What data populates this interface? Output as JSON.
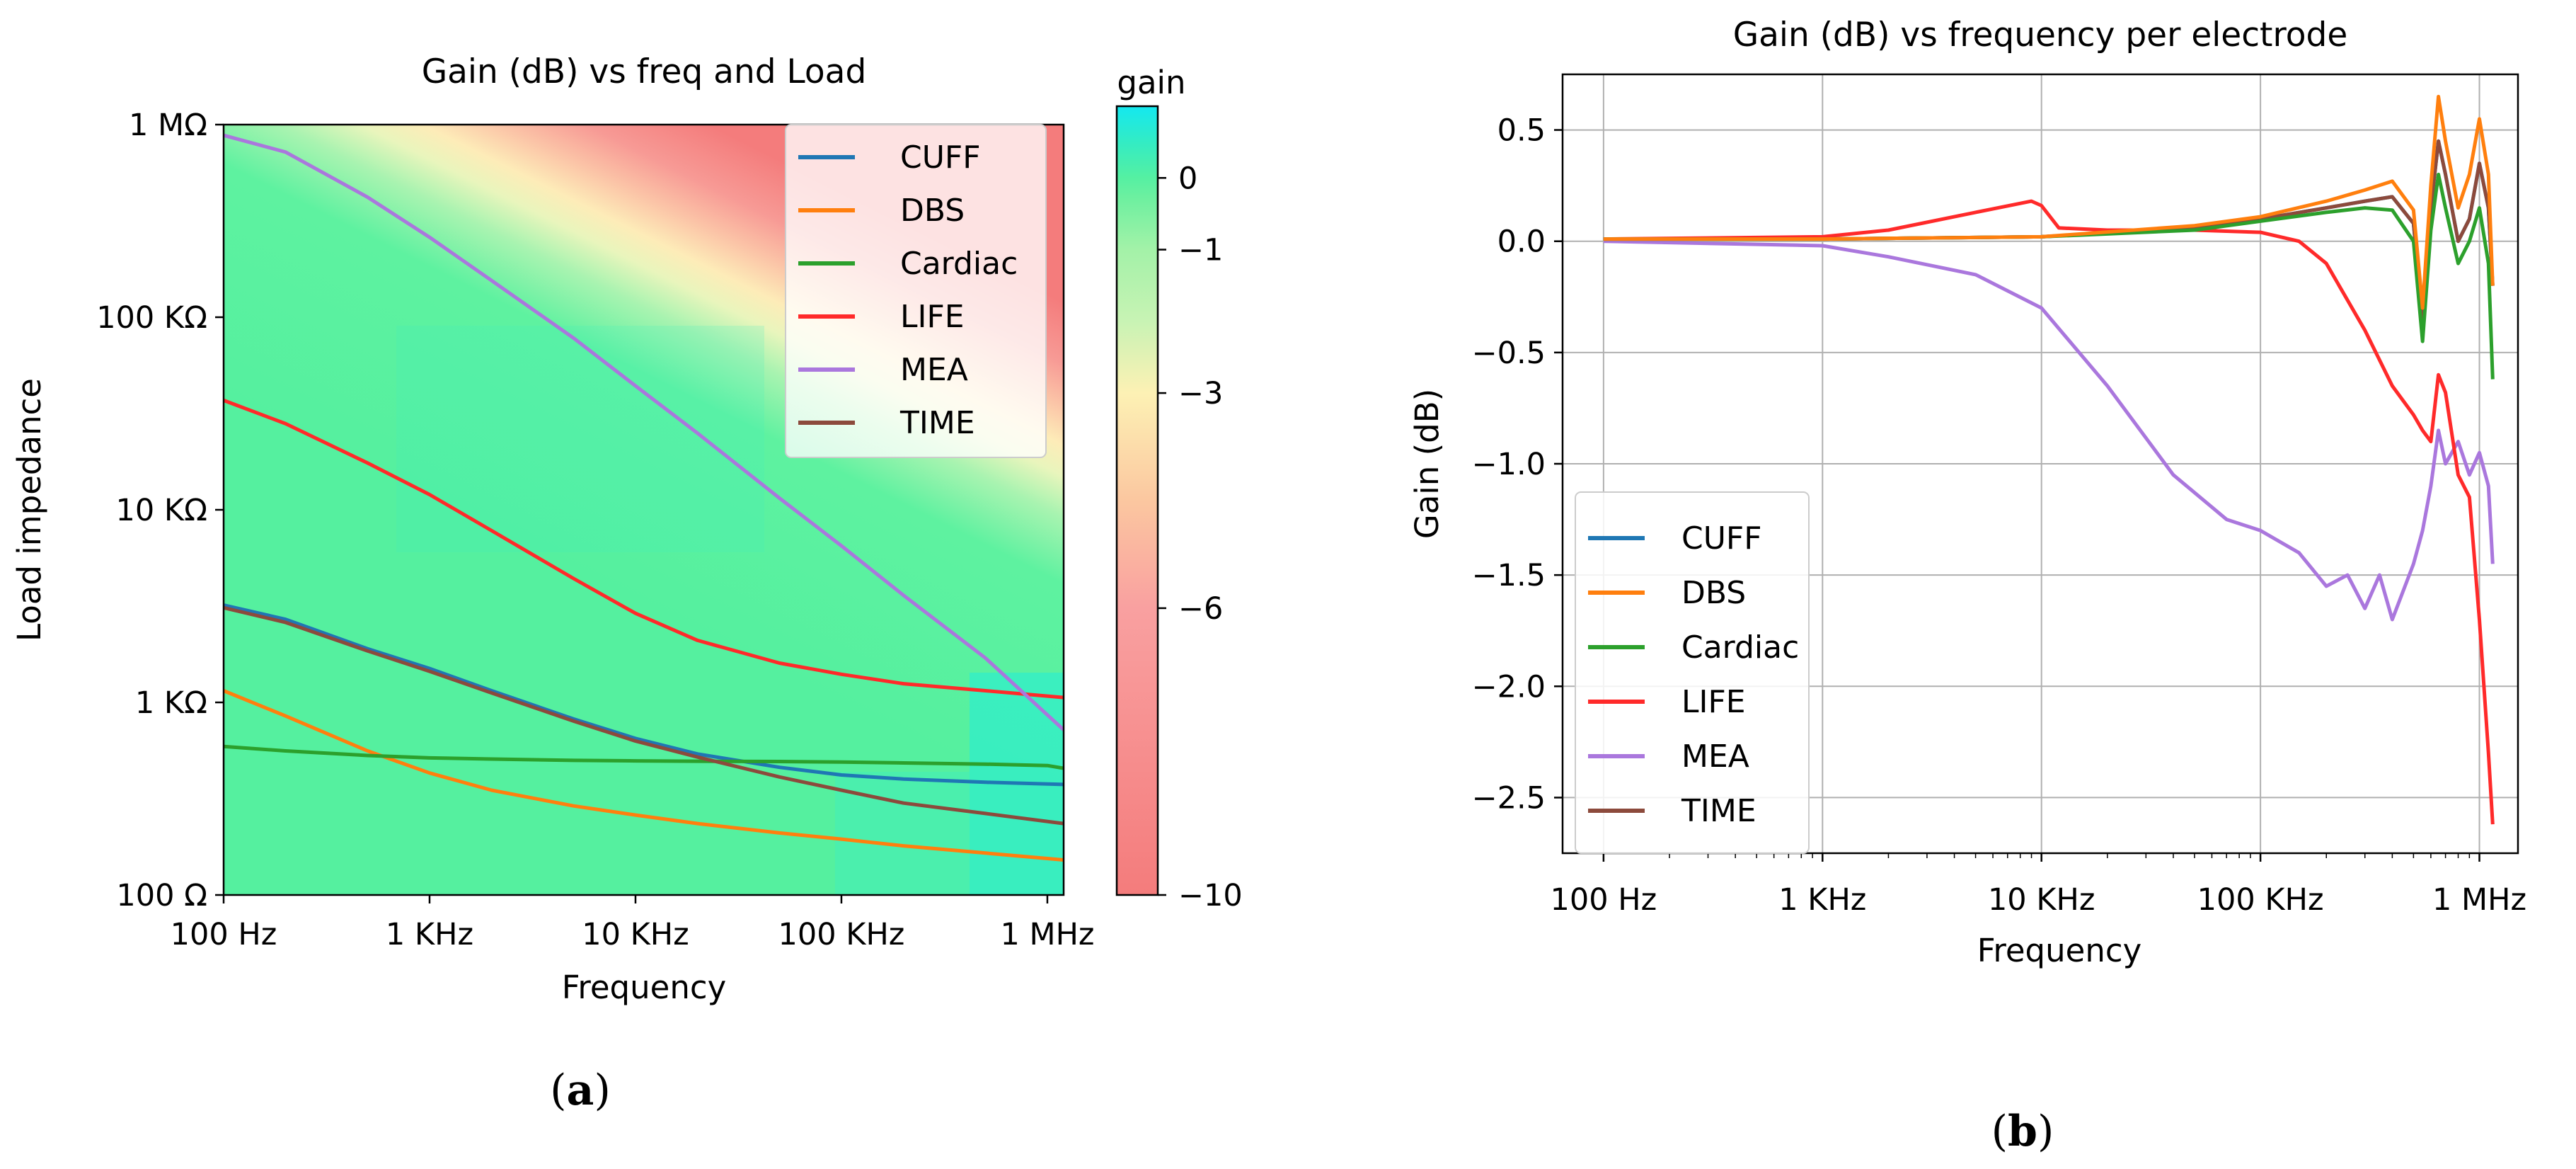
{
  "colors": {
    "CUFF": "#1f77b4",
    "DBS": "#ff7f0e",
    "Cardiac": "#2ca02c",
    "LIFE": "#ff2a2a",
    "MEA": "#aa77dd",
    "TIME": "#8c4a3c"
  },
  "labels": {
    "panel_a": "a",
    "panel_b": "b"
  },
  "chart_data": [
    {
      "type": "heatmap",
      "title": "Gain (dB) vs freq and Load",
      "xlabel": "Frequency",
      "ylabel": "Load impedance",
      "xscale": "log",
      "yscale": "log",
      "xlim": [
        100,
        1200000
      ],
      "ylim": [
        100,
        1000000
      ],
      "x_ticks": [
        {
          "v": 100,
          "label": "100 Hz"
        },
        {
          "v": 1000,
          "label": "1 KHz"
        },
        {
          "v": 10000,
          "label": "10 KHz"
        },
        {
          "v": 100000,
          "label": "100 KHz"
        },
        {
          "v": 1000000,
          "label": "1 MHz"
        }
      ],
      "y_ticks": [
        {
          "v": 100,
          "label": "100 Ω"
        },
        {
          "v": 1000,
          "label": "1 KΩ"
        },
        {
          "v": 10000,
          "label": "10 KΩ"
        },
        {
          "v": 100000,
          "label": "100 KΩ"
        },
        {
          "v": 1000000,
          "label": "1 MΩ"
        }
      ],
      "colorbar": {
        "label": "gain",
        "range": [
          -10,
          1
        ],
        "ticks": [
          {
            "v": 0,
            "label": "0"
          },
          {
            "v": -1,
            "label": "−1"
          },
          {
            "v": -3,
            "label": "−3"
          },
          {
            "v": -6,
            "label": "−6"
          },
          {
            "v": -10,
            "label": "−10"
          }
        ],
        "stops": [
          {
            "v": -10,
            "color": "#f47c7c"
          },
          {
            "v": -6,
            "color": "#f9a0a0"
          },
          {
            "v": -4.5,
            "color": "#fbc7a0"
          },
          {
            "v": -3,
            "color": "#fdf1b4"
          },
          {
            "v": -2,
            "color": "#c8f3b4"
          },
          {
            "v": -1,
            "color": "#a3f2a8"
          },
          {
            "v": -0.3,
            "color": "#6ff0a0"
          },
          {
            "v": 0,
            "color": "#55f0a2"
          },
          {
            "v": 0.5,
            "color": "#33ecc4"
          },
          {
            "v": 1,
            "color": "#14e8f0"
          }
        ]
      },
      "heatmap_note": "gain vs frequency and load: ~0 dB below a diagonal boundary, dropping to -10 dB above it (high frequency, high load)",
      "legend": {
        "placement": "top-right"
      },
      "series": [
        {
          "name": "CUFF",
          "x": [
            100,
            200,
            500,
            1000,
            2000,
            5000,
            10000,
            20000,
            50000,
            100000,
            200000,
            500000,
            1200000
          ],
          "y": [
            3200,
            2700,
            1900,
            1500,
            1150,
            820,
            650,
            540,
            460,
            420,
            400,
            385,
            375
          ]
        },
        {
          "name": "DBS",
          "x": [
            100,
            200,
            500,
            1000,
            2000,
            5000,
            10000,
            20000,
            50000,
            100000,
            200000,
            500000,
            1200000
          ],
          "y": [
            1150,
            850,
            560,
            430,
            350,
            290,
            260,
            235,
            210,
            195,
            180,
            165,
            152
          ]
        },
        {
          "name": "Cardiac",
          "x": [
            100,
            200,
            500,
            1000,
            2000,
            5000,
            10000,
            20000,
            50000,
            100000,
            200000,
            500000,
            1000000,
            1200000
          ],
          "y": [
            590,
            560,
            530,
            515,
            508,
            500,
            497,
            495,
            493,
            490,
            485,
            478,
            470,
            455
          ]
        },
        {
          "name": "LIFE",
          "x": [
            100,
            200,
            500,
            1000,
            2000,
            5000,
            10000,
            20000,
            50000,
            100000,
            200000,
            500000,
            1200000
          ],
          "y": [
            37000,
            28000,
            17500,
            12000,
            7800,
            4400,
            2900,
            2100,
            1600,
            1400,
            1250,
            1150,
            1060
          ]
        },
        {
          "name": "MEA",
          "x": [
            100,
            200,
            500,
            1000,
            2000,
            5000,
            10000,
            20000,
            50000,
            100000,
            200000,
            500000,
            1200000
          ],
          "y": [
            880000,
            720000,
            420000,
            260000,
            155000,
            78000,
            44000,
            25000,
            11500,
            6500,
            3600,
            1700,
            720
          ]
        },
        {
          "name": "TIME",
          "x": [
            100,
            200,
            500,
            1000,
            2000,
            5000,
            10000,
            20000,
            50000,
            100000,
            200000,
            500000,
            1200000
          ],
          "y": [
            3100,
            2600,
            1850,
            1450,
            1120,
            800,
            630,
            520,
            410,
            350,
            300,
            265,
            235
          ]
        }
      ]
    },
    {
      "type": "line",
      "title": "Gain (dB) vs frequency per electrode",
      "xlabel": "Frequency",
      "ylabel": "Gain (dB)",
      "xscale": "log",
      "xlim": [
        65,
        1500000
      ],
      "ylim": [
        -2.75,
        0.75
      ],
      "grid": true,
      "x_ticks": [
        {
          "v": 100,
          "label": "100 Hz"
        },
        {
          "v": 1000,
          "label": "1 KHz"
        },
        {
          "v": 10000,
          "label": "10 KHz"
        },
        {
          "v": 100000,
          "label": "100 KHz"
        },
        {
          "v": 1000000,
          "label": "1 MHz"
        }
      ],
      "y_ticks": [
        {
          "v": 0.5,
          "label": "0.5"
        },
        {
          "v": 0.0,
          "label": "0.0"
        },
        {
          "v": -0.5,
          "label": "−0.5"
        },
        {
          "v": -1.0,
          "label": "−1.0"
        },
        {
          "v": -1.5,
          "label": "−1.5"
        },
        {
          "v": -2.0,
          "label": "−2.0"
        },
        {
          "v": -2.5,
          "label": "−2.5"
        }
      ],
      "legend": {
        "placement": "lower-left"
      },
      "series": [
        {
          "name": "CUFF",
          "x": [
            100,
            1000,
            10000,
            50000,
            100000,
            200000,
            300000,
            400000,
            500000,
            550000,
            600000,
            650000,
            700000,
            800000,
            900000,
            1000000,
            1100000,
            1150000
          ],
          "y": [
            0.01,
            0.01,
            0.02,
            0.06,
            0.1,
            0.15,
            0.18,
            0.2,
            0.08,
            -0.35,
            0.15,
            0.45,
            0.3,
            0.0,
            0.1,
            0.35,
            0.15,
            -0.2
          ]
        },
        {
          "name": "DBS",
          "x": [
            100,
            1000,
            10000,
            50000,
            100000,
            200000,
            300000,
            400000,
            500000,
            550000,
            600000,
            650000,
            700000,
            800000,
            900000,
            1000000,
            1100000,
            1150000
          ],
          "y": [
            0.01,
            0.01,
            0.02,
            0.07,
            0.11,
            0.18,
            0.23,
            0.27,
            0.14,
            -0.3,
            0.25,
            0.65,
            0.45,
            0.15,
            0.3,
            0.55,
            0.3,
            -0.2
          ]
        },
        {
          "name": "Cardiac",
          "x": [
            100,
            1000,
            10000,
            50000,
            100000,
            200000,
            300000,
            400000,
            500000,
            550000,
            600000,
            650000,
            700000,
            800000,
            900000,
            1000000,
            1100000,
            1150000
          ],
          "y": [
            0.01,
            0.01,
            0.02,
            0.05,
            0.09,
            0.13,
            0.15,
            0.14,
            0.0,
            -0.45,
            0.05,
            0.3,
            0.15,
            -0.1,
            0.0,
            0.15,
            -0.1,
            -0.62
          ]
        },
        {
          "name": "LIFE",
          "x": [
            100,
            1000,
            2000,
            5000,
            9000,
            10000,
            12000,
            20000,
            50000,
            100000,
            150000,
            200000,
            300000,
            400000,
            500000,
            550000,
            600000,
            650000,
            700000,
            800000,
            900000,
            1000000,
            1100000,
            1150000
          ],
          "y": [
            0.01,
            0.02,
            0.05,
            0.13,
            0.18,
            0.16,
            0.06,
            0.05,
            0.05,
            0.04,
            0.0,
            -0.1,
            -0.4,
            -0.65,
            -0.78,
            -0.85,
            -0.9,
            -0.6,
            -0.68,
            -1.05,
            -1.15,
            -1.7,
            -2.3,
            -2.62
          ]
        },
        {
          "name": "MEA",
          "x": [
            100,
            1000,
            2000,
            5000,
            10000,
            20000,
            40000,
            70000,
            100000,
            150000,
            200000,
            250000,
            300000,
            350000,
            400000,
            500000,
            550000,
            600000,
            650000,
            700000,
            800000,
            900000,
            1000000,
            1100000,
            1150000
          ],
          "y": [
            0.0,
            -0.02,
            -0.07,
            -0.15,
            -0.3,
            -0.65,
            -1.05,
            -1.25,
            -1.3,
            -1.4,
            -1.55,
            -1.5,
            -1.65,
            -1.5,
            -1.7,
            -1.45,
            -1.3,
            -1.1,
            -0.85,
            -1.0,
            -0.9,
            -1.05,
            -0.95,
            -1.1,
            -1.45
          ]
        },
        {
          "name": "TIME",
          "x": [
            100,
            1000,
            10000,
            50000,
            100000,
            200000,
            300000,
            400000,
            500000,
            550000,
            600000,
            650000,
            700000,
            800000,
            900000,
            1000000,
            1100000,
            1150000
          ],
          "y": [
            0.01,
            0.01,
            0.02,
            0.06,
            0.1,
            0.15,
            0.18,
            0.2,
            0.08,
            -0.35,
            0.15,
            0.45,
            0.3,
            0.0,
            0.1,
            0.35,
            0.15,
            -0.2
          ]
        }
      ]
    }
  ]
}
